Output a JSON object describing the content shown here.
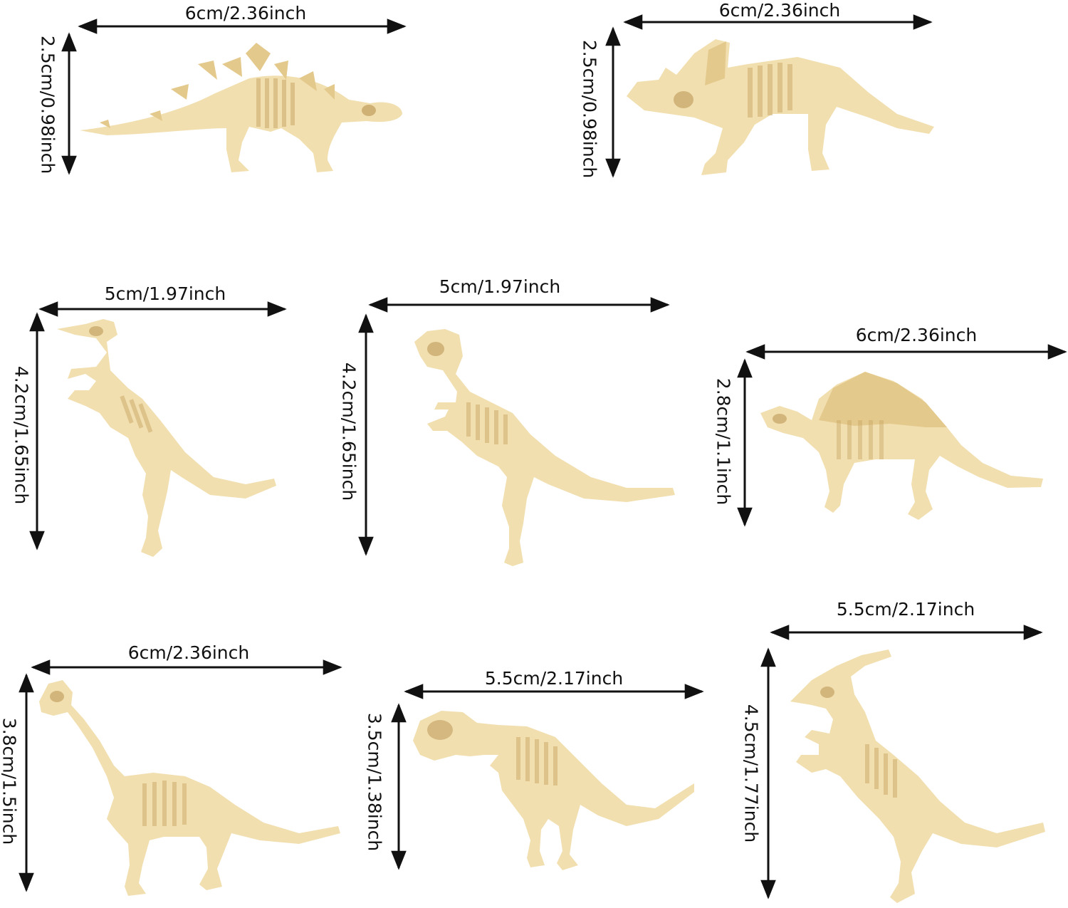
{
  "colors": {
    "background": "#ffffff",
    "bone": "#f2dfb0",
    "bone_shade": "#e4c98c",
    "bone_dark": "#c9a866",
    "arrow": "#111111"
  },
  "figures": [
    {
      "id": "stegosaurus",
      "width_label": "6cm/2.36inch",
      "height_label": "2.5cm/0.98inch"
    },
    {
      "id": "triceratops",
      "width_label": "6cm/2.36inch",
      "height_label": "2.5cm/0.98inch"
    },
    {
      "id": "raptor-left",
      "width_label": "5cm/1.97inch",
      "height_label": "4.2cm/1.65inch"
    },
    {
      "id": "tyrannosaurus",
      "width_label": "5cm/1.97inch",
      "height_label": "4.2cm/1.65inch"
    },
    {
      "id": "dimetrodon",
      "width_label": "6cm/2.36inch",
      "height_label": "2.8cm/1.1inch"
    },
    {
      "id": "brachiosaurus",
      "width_label": "6cm/2.36inch",
      "height_label": "3.8cm/1.5inch"
    },
    {
      "id": "pachycephalosaurus",
      "width_label": "5.5cm/2.17inch",
      "height_label": "3.5cm/1.38inch"
    },
    {
      "id": "parasaurolophus",
      "width_label": "5.5cm/2.17inch",
      "height_label": "4.5cm/1.77inch"
    }
  ]
}
